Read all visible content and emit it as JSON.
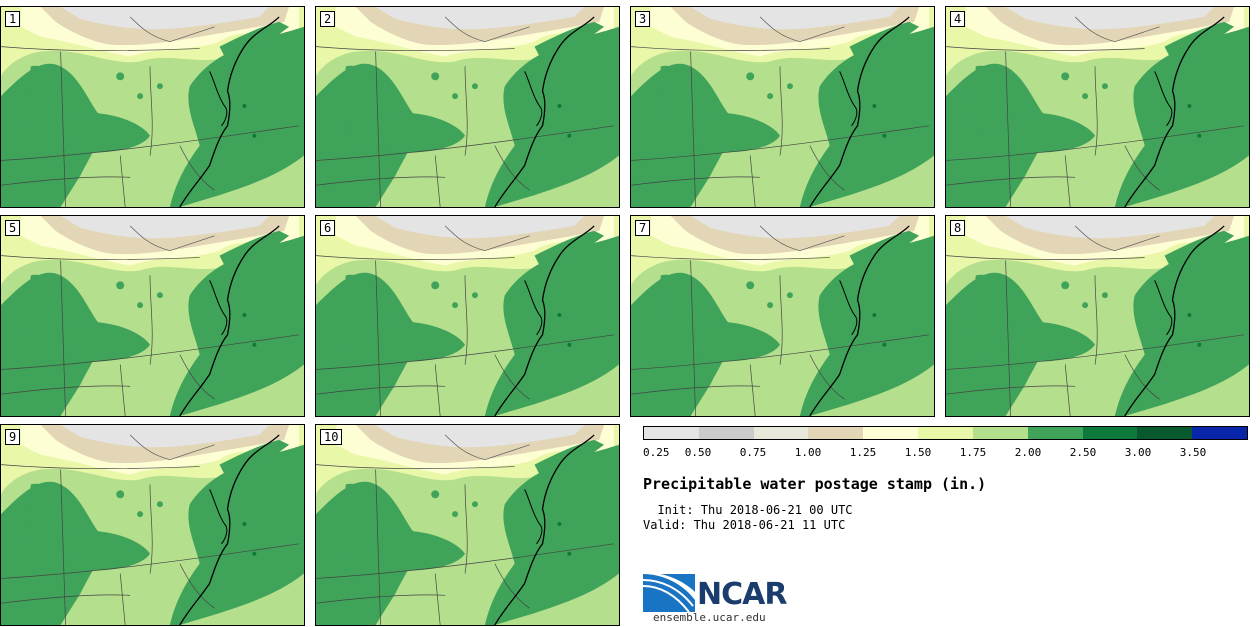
{
  "panels": [
    {
      "label": "1"
    },
    {
      "label": "2"
    },
    {
      "label": "3"
    },
    {
      "label": "4"
    },
    {
      "label": "5"
    },
    {
      "label": "6"
    },
    {
      "label": "7"
    },
    {
      "label": "8"
    },
    {
      "label": "9"
    },
    {
      "label": "10"
    }
  ],
  "colorbar": {
    "colors": [
      "#e4e4e4",
      "#cbcbcb",
      "#e8e8da",
      "#e3d6b6",
      "#fefed4",
      "#e8f7a8",
      "#b4df8c",
      "#3fa35a",
      "#0d7a3b",
      "#085a2e",
      "#0926a8"
    ],
    "ticks": [
      "0.25",
      "0.50",
      "0.75",
      "1.00",
      "1.25",
      "1.50",
      "1.75",
      "2.00",
      "2.50",
      "3.00",
      "3.50"
    ]
  },
  "title": "Precipitable water postage stamp (in.)",
  "init_line": "  Init: Thu 2018-06-21 00 UTC",
  "valid_line": "Valid: Thu 2018-06-21 11 UTC",
  "logo": {
    "name": "NCAR",
    "colors": {
      "blue": "#1a74c4",
      "dark": "#1a3d6e"
    }
  },
  "site": "ensemble.ucar.edu"
}
